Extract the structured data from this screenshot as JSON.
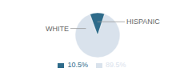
{
  "chart_data": {
    "type": "pie",
    "categories": [
      "WHITE",
      "HISPANIC"
    ],
    "values": [
      89.5,
      10.5
    ],
    "value_labels": [
      "89.5%",
      "10.5%"
    ],
    "colors": [
      "#d9e2ec",
      "#2e6b8a"
    ],
    "legend": "bottom"
  }
}
